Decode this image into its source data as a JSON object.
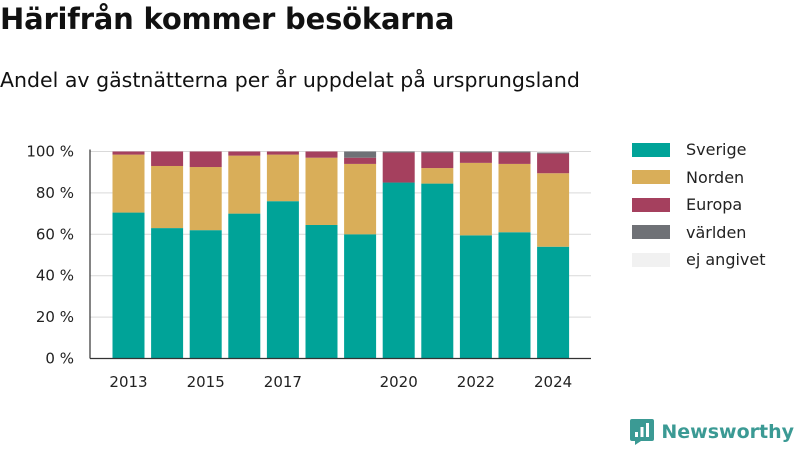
{
  "title": "Härifrån kommer besökarna",
  "subtitle": "Andel av gästnätterna per år uppdelat på ursprungsland",
  "brand": {
    "name": "Newsworthy",
    "icon": "newsworthy-logo-icon"
  },
  "chart_data": {
    "type": "bar",
    "stacked": true,
    "years": [
      2013,
      2014,
      2015,
      2016,
      2017,
      2018,
      2019,
      2020,
      2021,
      2022,
      2023,
      2024
    ],
    "x_tick_labels": [
      "2013",
      "2015",
      "2017",
      "2020",
      "2022",
      "2024"
    ],
    "x_tick_years": [
      2013,
      2015,
      2017,
      2020,
      2022,
      2024
    ],
    "y_ticks": [
      0,
      20,
      40,
      60,
      80,
      100
    ],
    "y_tick_labels": [
      "0 %",
      "20 %",
      "40 %",
      "60 %",
      "80 %",
      "100 %"
    ],
    "ylim": [
      0,
      100
    ],
    "grid": true,
    "legend_position": "right",
    "series": [
      {
        "name": "Sverige",
        "color": "#00a398",
        "values": [
          70.5,
          63,
          62,
          70,
          76,
          64.5,
          60,
          85,
          84.5,
          59.5,
          61,
          54
        ]
      },
      {
        "name": "Norden",
        "color": "#d9ae59",
        "values": [
          28,
          30,
          30.5,
          28,
          22.5,
          32.5,
          34,
          0,
          7.5,
          35,
          33,
          35.5
        ]
      },
      {
        "name": "Europa",
        "color": "#a5405e",
        "values": [
          1.5,
          7,
          7.5,
          2,
          1.5,
          3,
          3,
          14.5,
          7.5,
          5,
          5.5,
          9.5
        ]
      },
      {
        "name": "världen",
        "color": "#6f7176",
        "values": [
          0,
          0,
          0,
          0,
          0,
          0,
          3,
          0.5,
          0.5,
          0.5,
          0.5,
          0.5
        ]
      },
      {
        "name": "ej angivet",
        "color": "#f1f1f1",
        "values": [
          0,
          0,
          0,
          0,
          0,
          0,
          0,
          0,
          0,
          0,
          0,
          0.5
        ]
      }
    ]
  }
}
